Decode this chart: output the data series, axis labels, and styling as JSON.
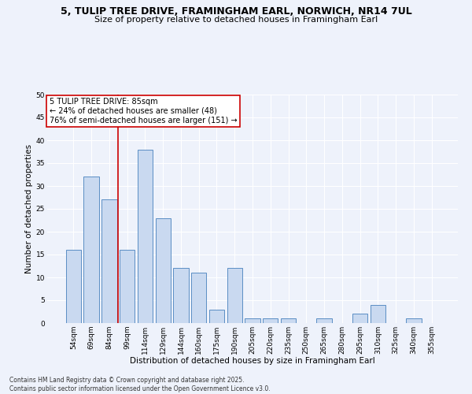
{
  "title": "5, TULIP TREE DRIVE, FRAMINGHAM EARL, NORWICH, NR14 7UL",
  "subtitle": "Size of property relative to detached houses in Framingham Earl",
  "categories": [
    "54sqm",
    "69sqm",
    "84sqm",
    "99sqm",
    "114sqm",
    "129sqm",
    "144sqm",
    "160sqm",
    "175sqm",
    "190sqm",
    "205sqm",
    "220sqm",
    "235sqm",
    "250sqm",
    "265sqm",
    "280sqm",
    "295sqm",
    "310sqm",
    "325sqm",
    "340sqm",
    "355sqm"
  ],
  "values": [
    16,
    32,
    27,
    16,
    38,
    23,
    12,
    11,
    3,
    12,
    1,
    1,
    1,
    0,
    1,
    0,
    2,
    4,
    0,
    1,
    0
  ],
  "bar_color": "#c9d9f0",
  "bar_edge_color": "#5b8ec4",
  "vline_color": "#cc0000",
  "xlabel": "Distribution of detached houses by size in Framingham Earl",
  "ylabel": "Number of detached properties",
  "ylim": [
    0,
    50
  ],
  "yticks": [
    0,
    5,
    10,
    15,
    20,
    25,
    30,
    35,
    40,
    45,
    50
  ],
  "annotation_title": "5 TULIP TREE DRIVE: 85sqm",
  "annotation_line1": "← 24% of detached houses are smaller (48)",
  "annotation_line2": "76% of semi-detached houses are larger (151) →",
  "annotation_box_color": "#ffffff",
  "annotation_box_edge": "#cc0000",
  "footer_line1": "Contains HM Land Registry data © Crown copyright and database right 2025.",
  "footer_line2": "Contains public sector information licensed under the Open Government Licence v3.0.",
  "background_color": "#eef2fb",
  "grid_color": "#ffffff",
  "title_fontsize": 9,
  "subtitle_fontsize": 8,
  "axis_fontsize": 7.5,
  "tick_fontsize": 6.5,
  "footer_fontsize": 5.5,
  "annotation_fontsize": 7
}
